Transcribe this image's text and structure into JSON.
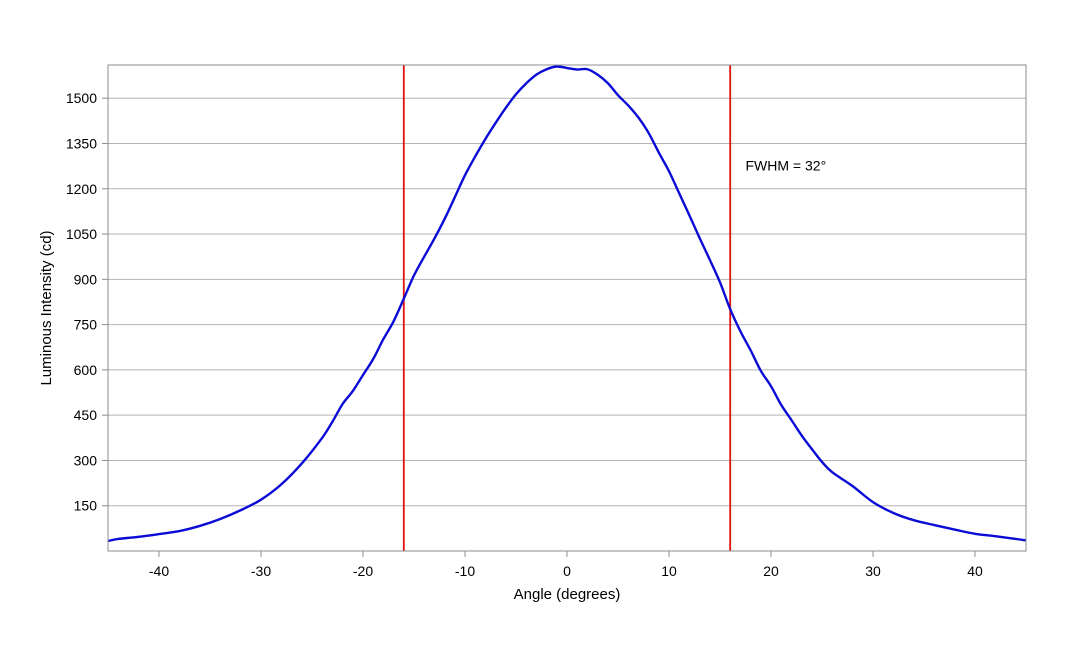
{
  "chart_data": {
    "type": "line",
    "title": "",
    "xlabel": "Angle (degrees)",
    "ylabel": "Luminous Intensity (cd)",
    "xlim": [
      -45,
      45
    ],
    "ylim": [
      0,
      1610
    ],
    "x_ticks": [
      -40,
      -30,
      -20,
      -10,
      0,
      10,
      20,
      30,
      40
    ],
    "y_ticks": [
      150,
      300,
      450,
      600,
      750,
      900,
      1050,
      1200,
      1350,
      1500
    ],
    "grid": "horizontal",
    "series": [
      {
        "color": "#0b0bd6",
        "x": [
          -45,
          -44,
          -42,
          -40,
          -38,
          -36,
          -34,
          -32,
          -30,
          -28,
          -26,
          -24,
          -23,
          -22,
          -21,
          -20,
          -19,
          -18,
          -17,
          -16,
          -15,
          -14,
          -13,
          -12,
          -11,
          -10,
          -9,
          -8,
          -7,
          -6,
          -5,
          -4,
          -3,
          -2,
          -1,
          0,
          1,
          2,
          3,
          4,
          5,
          6,
          7,
          8,
          9,
          10,
          11,
          12,
          13,
          14,
          15,
          16,
          17,
          18,
          19,
          20,
          21,
          22,
          23,
          24,
          25,
          26,
          28,
          30,
          32,
          34,
          36,
          38,
          40,
          42,
          44,
          45
        ],
        "y": [
          33,
          40,
          47,
          56,
          66,
          83,
          106,
          135,
          170,
          221,
          290,
          375,
          428,
          487,
          530,
          583,
          636,
          702,
          761,
          836,
          913,
          975,
          1035,
          1100,
          1172,
          1245,
          1307,
          1365,
          1418,
          1468,
          1513,
          1549,
          1578,
          1596,
          1605,
          1600,
          1595,
          1596,
          1578,
          1550,
          1510,
          1476,
          1436,
          1385,
          1320,
          1258,
          1185,
          1112,
          1037,
          965,
          890,
          801,
          728,
          665,
          597,
          546,
          484,
          434,
          383,
          338,
          295,
          261,
          215,
          162,
          126,
          102,
          86,
          71,
          57,
          49,
          40,
          35
        ]
      }
    ],
    "vlines": [
      {
        "x": -16,
        "color": "#e01010"
      },
      {
        "x": 16,
        "color": "#e01010"
      }
    ],
    "annotations": [
      {
        "text": "FWHM = 32°",
        "x": 17.5,
        "y": 1260
      }
    ]
  }
}
